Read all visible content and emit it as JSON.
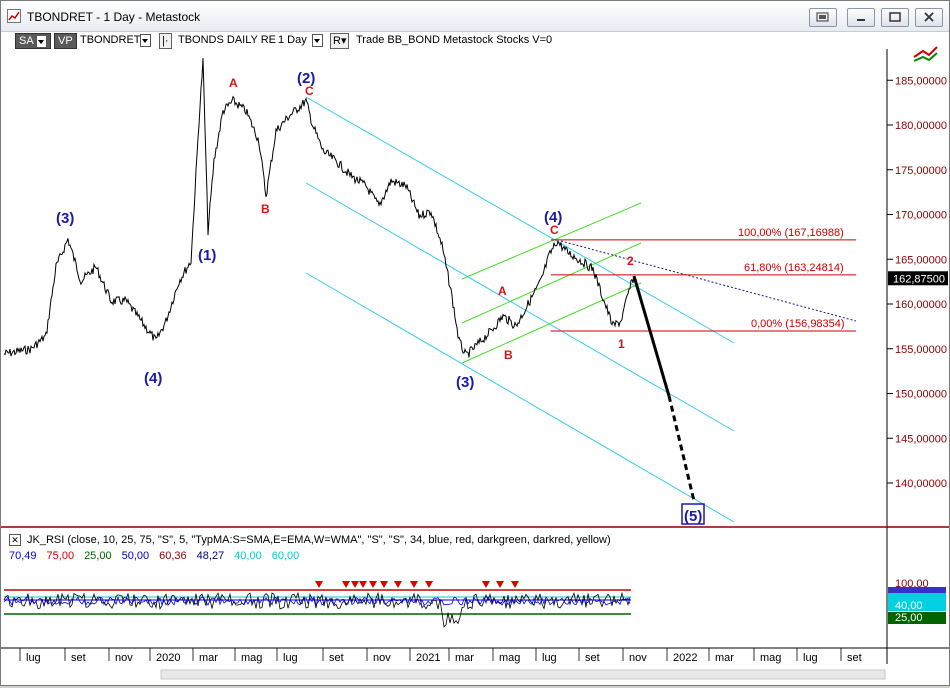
{
  "window": {
    "title": "TBONDRET - 1 Day - Metastock"
  },
  "toolbar": {
    "sa_label": "SA",
    "vp_label": "VP",
    "symbol": "TBONDRET",
    "series_name": "TBONDS DAILY RE",
    "period": "1 Day",
    "r_label": "R",
    "info": "Trade  BB_BOND  Metastock  Stocks  V=0"
  },
  "y_axis": {
    "ticks": [
      {
        "value": 185,
        "label": "185,00000"
      },
      {
        "value": 180,
        "label": "180,00000"
      },
      {
        "value": 175,
        "label": "175,00000"
      },
      {
        "value": 170,
        "label": "170,00000"
      },
      {
        "value": 165,
        "label": "165,00000"
      },
      {
        "value": 160,
        "label": "160,00000"
      },
      {
        "value": 155,
        "label": "155,00000"
      },
      {
        "value": 150,
        "label": "150,00000"
      },
      {
        "value": 145,
        "label": "145,00000"
      },
      {
        "value": 140,
        "label": "140,00000"
      }
    ],
    "last_price": "162,87500"
  },
  "fib_levels": [
    {
      "label": "100,00% (167,16988)",
      "value": 167.16988
    },
    {
      "label": "61,80% (163,24814)",
      "value": 163.24814
    },
    {
      "label": "0,00% (156,98354)",
      "value": 156.98354
    }
  ],
  "wave_labels": {
    "blue": [
      "(3)",
      "(4)",
      "(1)",
      "(2)",
      "(3)",
      "(4)",
      "(5)"
    ],
    "red": [
      "A",
      "B",
      "C",
      "A",
      "B",
      "C",
      "1",
      "2"
    ]
  },
  "rsi": {
    "header": "JK_RSI  (close, 10, 25, 75, \"S\", 5, \"TypMA:S=SMA,E=EMA,W=WMA\", \"S\", \"S\", 34, blue, red, darkgreen, darkred, yellow)",
    "values": [
      {
        "text": "70,49",
        "color": "#0000ff"
      },
      {
        "text": "75,00",
        "color": "#cc0000"
      },
      {
        "text": "25,00",
        "color": "#006400"
      },
      {
        "text": "50,00",
        "color": "#0000cc"
      },
      {
        "text": "60,36",
        "color": "#8b0000"
      },
      {
        "text": "48,27",
        "color": "#000080"
      },
      {
        "text": "40,00",
        "color": "#00cccc"
      },
      {
        "text": "60,00",
        "color": "#00cccc"
      }
    ],
    "axis_labels": {
      "top": "100,00",
      "mid": "40,00",
      "bottom": "25,00"
    }
  },
  "x_axis": {
    "labels": [
      "lug",
      "set",
      "nov",
      "2020",
      "mar",
      "mag",
      "lug",
      "set",
      "nov",
      "2021",
      "mar",
      "mag",
      "lug",
      "set",
      "nov",
      "2022",
      "mar",
      "mag",
      "lug",
      "set"
    ]
  },
  "colors": {
    "price": "#000000",
    "channel_cyan": "#33ccee",
    "channel_green": "#44dd22",
    "fib_red": "#cc0000",
    "wave_blue": "#1a1aaa",
    "wave_red": "#dd1111"
  }
}
